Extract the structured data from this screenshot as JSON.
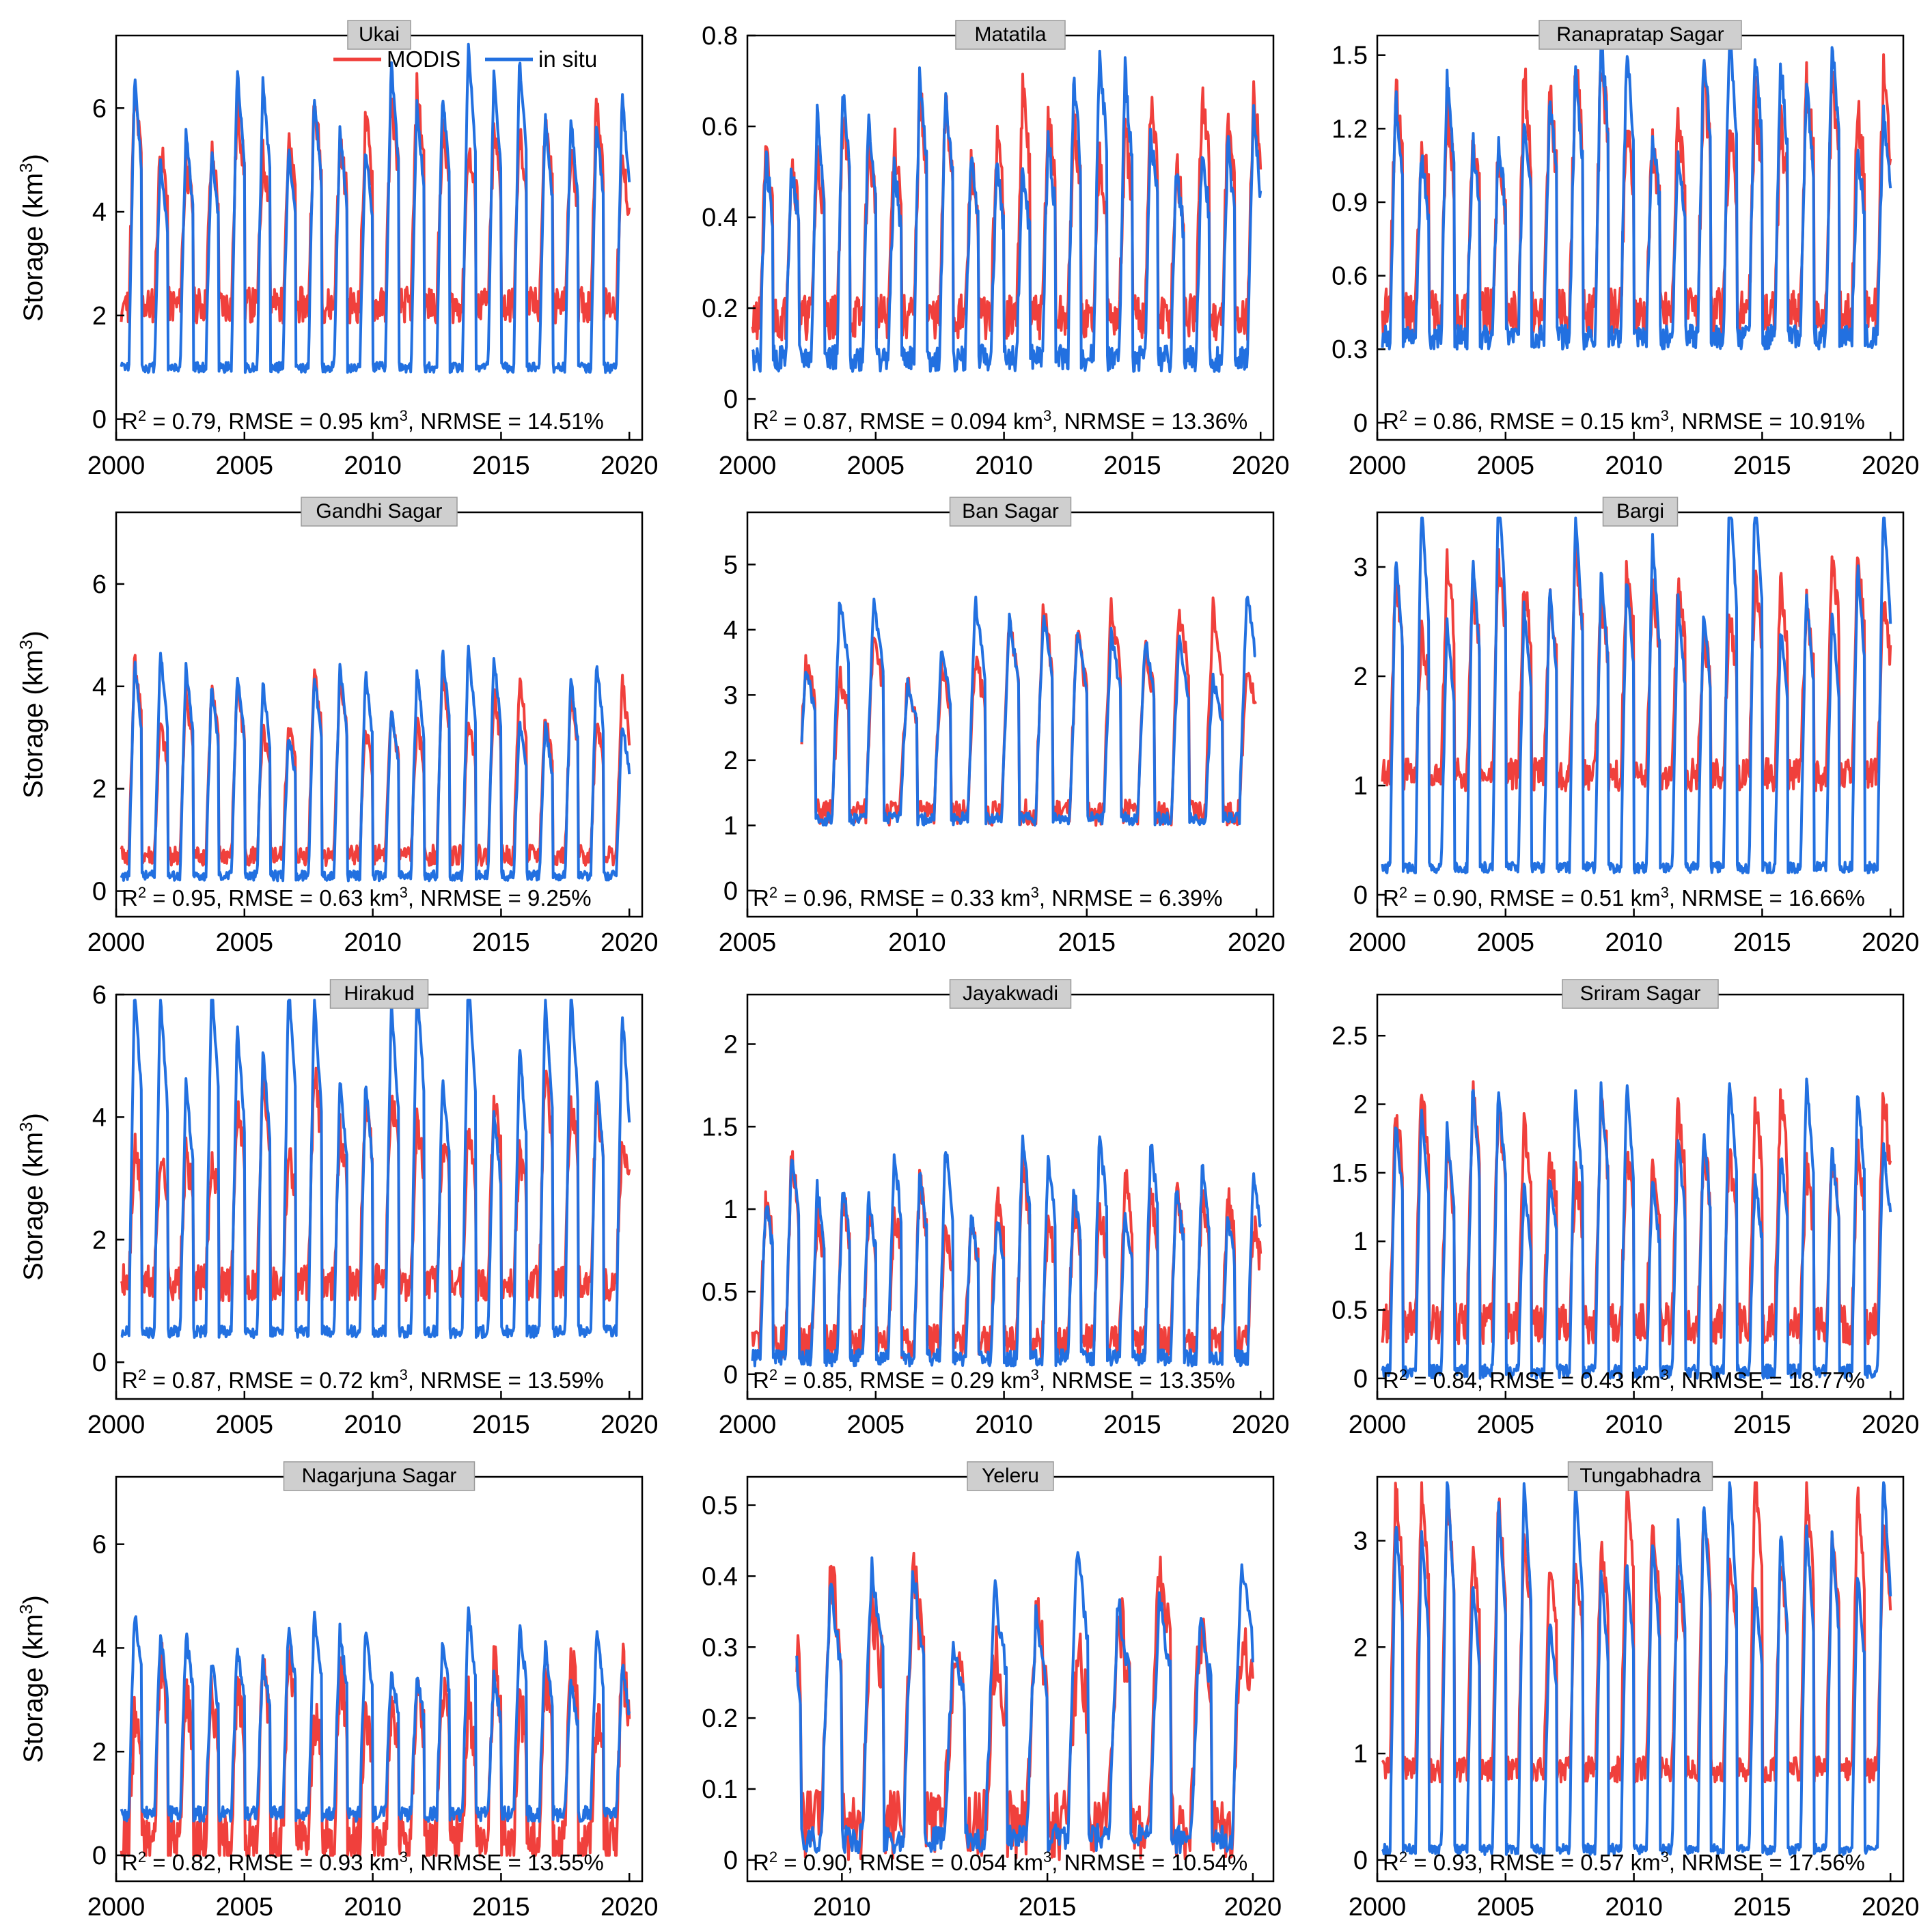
{
  "figure": {
    "series_colors": {
      "MODIS": "#f0403c",
      "in situ": "#2270e0"
    },
    "title_box_color": "#cfcfcf"
  },
  "legend": {
    "modis_label": "MODIS",
    "insitu_label": "in situ"
  },
  "ylabel_main": "Storage (km",
  "ylabel_sup": "3",
  "ylabel_close": ")",
  "stats_r2_prefix": "R",
  "stats_r2_sup": "2",
  "stats_unit_sup": "3",
  "chart_data": [
    {
      "type": "line",
      "title": "Ukai",
      "xlim": [
        2000,
        2020.5
      ],
      "ylim": [
        -0.4,
        7.4
      ],
      "xticks": [
        2000,
        2005,
        2010,
        2015,
        2020
      ],
      "yticks": [
        0,
        2,
        4,
        6
      ],
      "xstart": 2000.2,
      "xend": 2020,
      "stats": {
        "r2": "0.79",
        "rmse": "0.95",
        "nrmse": "14.51%"
      },
      "legend": true,
      "series": [
        {
          "name": "MODIS",
          "baseline": 2.2,
          "peak": 5.6,
          "jitter": 0.35,
          "seed": 11
        },
        {
          "name": "in situ",
          "baseline": 1.0,
          "peak": 6.0,
          "jitter": 0.1,
          "seed": 12
        }
      ]
    },
    {
      "type": "line",
      "title": "Matatila",
      "xlim": [
        2000,
        2020.5
      ],
      "ylim": [
        -0.09,
        0.8
      ],
      "xticks": [
        2000,
        2005,
        2010,
        2015,
        2020
      ],
      "yticks": [
        0,
        0.2,
        0.4,
        0.6,
        0.8
      ],
      "xstart": 2000.2,
      "xend": 2020,
      "stats": {
        "r2": "0.87",
        "rmse": "0.094",
        "nrmse": "13.36%"
      },
      "series": [
        {
          "name": "MODIS",
          "baseline": 0.18,
          "peak": 0.58,
          "jitter": 0.05,
          "seed": 21
        },
        {
          "name": "in situ",
          "baseline": 0.09,
          "peak": 0.64,
          "jitter": 0.03,
          "seed": 22
        }
      ]
    },
    {
      "type": "line",
      "title": "Ranapratap Sagar",
      "xlim": [
        2000,
        2020.5
      ],
      "ylim": [
        -0.07,
        1.58
      ],
      "xticks": [
        2000,
        2005,
        2010,
        2015,
        2020
      ],
      "yticks": [
        0,
        0.3,
        0.6,
        0.9,
        1.2,
        1.5
      ],
      "xstart": 2000.2,
      "xend": 2020,
      "stats": {
        "r2": "0.86",
        "rmse": "0.15",
        "nrmse": "10.91%"
      },
      "series": [
        {
          "name": "MODIS",
          "baseline": 0.45,
          "peak": 1.3,
          "jitter": 0.1,
          "seed": 31
        },
        {
          "name": "in situ",
          "baseline": 0.35,
          "peak": 1.35,
          "jitter": 0.05,
          "seed": 32
        }
      ]
    },
    {
      "type": "line",
      "title": "Gandhi Sagar",
      "xlim": [
        2000,
        2020.5
      ],
      "ylim": [
        -0.5,
        7.4
      ],
      "xticks": [
        2000,
        2005,
        2010,
        2015,
        2020
      ],
      "yticks": [
        0,
        2,
        4,
        6
      ],
      "xstart": 2000.2,
      "xend": 2020,
      "stats": {
        "r2": "0.95",
        "rmse": "0.63",
        "nrmse": "9.25%"
      },
      "series": [
        {
          "name": "MODIS",
          "baseline": 0.7,
          "peak": 3.8,
          "jitter": 0.2,
          "seed": 41
        },
        {
          "name": "in situ",
          "baseline": 0.3,
          "peak": 3.9,
          "jitter": 0.1,
          "seed": 42
        }
      ]
    },
    {
      "type": "line",
      "title": "Ban Sagar",
      "xlim": [
        2005,
        2020.5
      ],
      "ylim": [
        -0.4,
        5.8
      ],
      "xticks": [
        2005,
        2010,
        2015,
        2020
      ],
      "yticks": [
        0,
        1,
        2,
        3,
        4,
        5
      ],
      "xstart": 2006.6,
      "xend": 2020,
      "stats": {
        "r2": "0.96",
        "rmse": "0.33",
        "nrmse": "6.39%"
      },
      "series": [
        {
          "name": "MODIS",
          "baseline": 1.2,
          "peak": 3.8,
          "jitter": 0.2,
          "seed": 51
        },
        {
          "name": "in situ",
          "baseline": 1.1,
          "peak": 3.9,
          "jitter": 0.1,
          "seed": 52
        }
      ]
    },
    {
      "type": "line",
      "title": "Bargi",
      "xlim": [
        2000,
        2020.5
      ],
      "ylim": [
        -0.2,
        3.5
      ],
      "xticks": [
        2000,
        2005,
        2010,
        2015,
        2020
      ],
      "yticks": [
        0,
        1,
        2,
        3
      ],
      "xstart": 2000.2,
      "xend": 2020,
      "stats": {
        "r2": "0.90",
        "rmse": "0.51",
        "nrmse": "16.66%"
      },
      "series": [
        {
          "name": "MODIS",
          "baseline": 1.1,
          "peak": 2.75,
          "jitter": 0.15,
          "seed": 61
        },
        {
          "name": "in situ",
          "baseline": 0.25,
          "peak": 3.1,
          "jitter": 0.05,
          "seed": 62
        }
      ]
    },
    {
      "type": "line",
      "title": "Hirakud",
      "xlim": [
        2000,
        2020.5
      ],
      "ylim": [
        -0.6,
        6.0
      ],
      "xticks": [
        2000,
        2005,
        2010,
        2015,
        2020
      ],
      "yticks": [
        0,
        2,
        4,
        6
      ],
      "xstart": 2000.2,
      "xend": 2020,
      "stats": {
        "r2": "0.87",
        "rmse": "0.72",
        "nrmse": "13.59%"
      },
      "series": [
        {
          "name": "MODIS",
          "baseline": 1.3,
          "peak": 4.1,
          "jitter": 0.3,
          "seed": 71
        },
        {
          "name": "in situ",
          "baseline": 0.5,
          "peak": 5.2,
          "jitter": 0.1,
          "seed": 72
        }
      ]
    },
    {
      "type": "line",
      "title": "Jayakwadi",
      "xlim": [
        2000,
        2020.5
      ],
      "ylim": [
        -0.15,
        2.3
      ],
      "xticks": [
        2000,
        2005,
        2010,
        2015,
        2020
      ],
      "yticks": [
        0,
        0.5,
        1,
        1.5,
        2
      ],
      "xstart": 2000.2,
      "xend": 2020,
      "stats": {
        "r2": "0.85",
        "rmse": "0.29",
        "nrmse": "13.35%"
      },
      "series": [
        {
          "name": "MODIS",
          "baseline": 0.2,
          "peak": 1.1,
          "jitter": 0.1,
          "seed": 81
        },
        {
          "name": "in situ",
          "baseline": 0.1,
          "peak": 1.2,
          "jitter": 0.05,
          "seed": 82
        }
      ]
    },
    {
      "type": "line",
      "title": "Sriram Sagar",
      "xlim": [
        2000,
        2020.5
      ],
      "ylim": [
        -0.15,
        2.8
      ],
      "xticks": [
        2000,
        2005,
        2010,
        2015,
        2020
      ],
      "yticks": [
        0,
        0.5,
        1,
        1.5,
        2,
        2.5
      ],
      "xstart": 2000.2,
      "xend": 2020,
      "stats": {
        "r2": "0.84",
        "rmse": "0.43",
        "nrmse": "18.77%"
      },
      "series": [
        {
          "name": "MODIS",
          "baseline": 0.4,
          "peak": 1.8,
          "jitter": 0.15,
          "seed": 91
        },
        {
          "name": "in situ",
          "baseline": 0.05,
          "peak": 1.8,
          "jitter": 0.05,
          "seed": 92
        }
      ]
    },
    {
      "type": "line",
      "title": "Nagarjuna Sagar",
      "xlim": [
        2000,
        2020.5
      ],
      "ylim": [
        -0.5,
        7.3
      ],
      "xticks": [
        2000,
        2005,
        2010,
        2015,
        2020
      ],
      "yticks": [
        0,
        2,
        4,
        6
      ],
      "xstart": 2000.2,
      "xend": 2020,
      "stats": {
        "r2": "0.82",
        "rmse": "0.93",
        "nrmse": "13.55%"
      },
      "series": [
        {
          "name": "MODIS",
          "baseline": 0.3,
          "peak": 3.3,
          "jitter": 0.5,
          "seed": 101
        },
        {
          "name": "in situ",
          "baseline": 0.8,
          "peak": 4.0,
          "jitter": 0.15,
          "seed": 102
        }
      ]
    },
    {
      "type": "line",
      "title": "Yeleru",
      "xlim": [
        2007.7,
        2020.5
      ],
      "ylim": [
        -0.03,
        0.54
      ],
      "xticks": [
        2010,
        2015,
        2020
      ],
      "yticks": [
        0,
        0.1,
        0.2,
        0.3,
        0.4,
        0.5
      ],
      "xstart": 2008.9,
      "xend": 2020,
      "stats": {
        "r2": "0.90",
        "rmse": "0.054",
        "nrmse": "10.54%"
      },
      "series": [
        {
          "name": "MODIS",
          "baseline": 0.05,
          "peak": 0.35,
          "jitter": 0.05,
          "seed": 111
        },
        {
          "name": "in situ",
          "baseline": 0.03,
          "peak": 0.36,
          "jitter": 0.02,
          "seed": 112
        }
      ]
    },
    {
      "type": "line",
      "title": "Tungabhadra",
      "xlim": [
        2000,
        2020.5
      ],
      "ylim": [
        -0.2,
        3.6
      ],
      "xticks": [
        2000,
        2005,
        2010,
        2015,
        2020
      ],
      "yticks": [
        0,
        1,
        2,
        3
      ],
      "xstart": 2000.2,
      "xend": 2020,
      "stats": {
        "r2": "0.93",
        "rmse": "0.57",
        "nrmse": "17.56%"
      },
      "series": [
        {
          "name": "MODIS",
          "baseline": 0.85,
          "peak": 3.15,
          "jitter": 0.12,
          "seed": 121
        },
        {
          "name": "in situ",
          "baseline": 0.1,
          "peak": 2.95,
          "jitter": 0.05,
          "seed": 122
        }
      ]
    }
  ]
}
